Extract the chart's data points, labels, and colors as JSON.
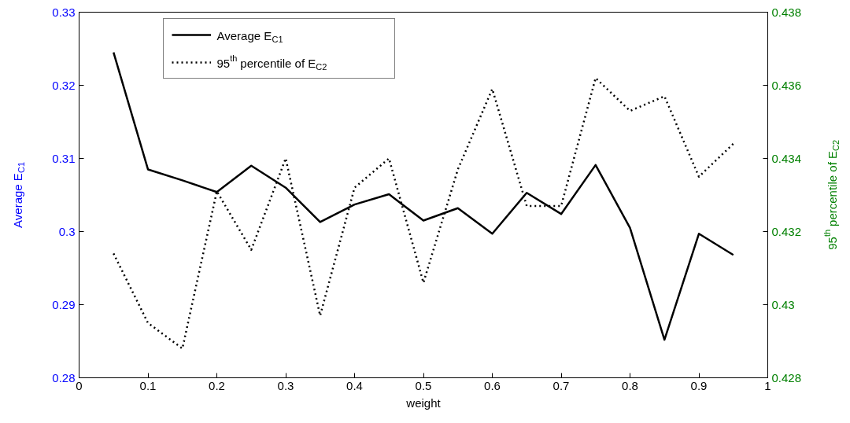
{
  "chart_data": {
    "type": "line",
    "xlabel": "weight",
    "ylabel": "Average E$_{C1}$",
    "y2label": "95$^{th}$ percentile of E$_{C2}$",
    "x": [
      0.05,
      0.1,
      0.15,
      0.2,
      0.25,
      0.3,
      0.35,
      0.4,
      0.45,
      0.5,
      0.55,
      0.6,
      0.65,
      0.7,
      0.75,
      0.8,
      0.85,
      0.9,
      0.95
    ],
    "series": [
      {
        "name": "Average E$_{C1}$",
        "color": "#000000",
        "line_style": "solid",
        "values": [
          0.3245,
          0.3085,
          0.307,
          0.3054,
          0.309,
          0.306,
          0.3013,
          0.3037,
          0.3051,
          0.3015,
          0.3032,
          0.2997,
          0.3053,
          0.3024,
          0.3091,
          0.3005,
          0.2852,
          0.2997,
          0.2968
        ]
      },
      {
        "name": "95$^{th}$ percentile of E$_{C2}$",
        "color": "#000000",
        "line_style": "dotted",
        "axis": "y2",
        "values": [
          0.4314,
          0.4295,
          0.4288,
          0.4331,
          0.4315,
          0.434,
          0.4297,
          0.4332,
          0.434,
          0.4306,
          0.4337,
          0.4359,
          0.4327,
          0.4327,
          0.4362,
          0.4353,
          0.4357,
          0.4335,
          0.4344
        ]
      }
    ],
    "xlim": [
      0,
      1
    ],
    "xticks": [
      0,
      0.1,
      0.2,
      0.3,
      0.4,
      0.5,
      0.6,
      0.7,
      0.8,
      0.9,
      1
    ],
    "ylim": [
      0.28,
      0.33
    ],
    "yticks": [
      0.28,
      0.29,
      0.3,
      0.31,
      0.32,
      0.33
    ],
    "y2lim": [
      0.428,
      0.438
    ],
    "y2ticks": [
      0.428,
      0.43,
      0.432,
      0.434,
      0.436,
      0.438
    ],
    "grid": false,
    "legend": "top left",
    "marker": "none"
  }
}
